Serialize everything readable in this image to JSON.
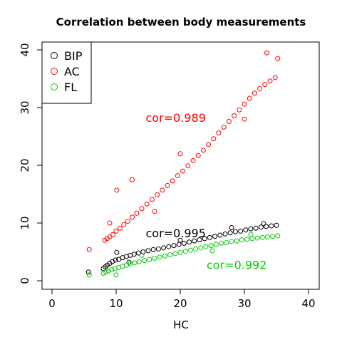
{
  "chart_data": {
    "type": "scatter",
    "title": "Correlation between body measurements",
    "xlabel": "HC",
    "ylabel": "",
    "xlim": [
      0,
      40
    ],
    "ylim": [
      0,
      40
    ],
    "x_ticks": [
      "0",
      "10",
      "20",
      "30",
      "40"
    ],
    "y_ticks": [
      "0",
      "10",
      "20",
      "30",
      "40"
    ],
    "grid": false,
    "legend_position": "top-left",
    "series": [
      {
        "name": "BIP",
        "color": "#000000",
        "points": [
          [
            5.7,
            1.5
          ],
          [
            8.0,
            2.1
          ],
          [
            8.3,
            2.4
          ],
          [
            8.6,
            2.7
          ],
          [
            9.0,
            3.0
          ],
          [
            9.4,
            3.3
          ],
          [
            9.9,
            3.6
          ],
          [
            10.4,
            3.7
          ],
          [
            11.0,
            4.0
          ],
          [
            11.6,
            4.2
          ],
          [
            12.2,
            4.4
          ],
          [
            12.8,
            4.6
          ],
          [
            13.5,
            4.8
          ],
          [
            14.2,
            5.0
          ],
          [
            15.0,
            5.2
          ],
          [
            15.8,
            5.4
          ],
          [
            16.6,
            5.5
          ],
          [
            17.4,
            5.7
          ],
          [
            18.2,
            5.9
          ],
          [
            19.0,
            6.1
          ],
          [
            19.8,
            6.3
          ],
          [
            20.6,
            6.5
          ],
          [
            21.4,
            6.7
          ],
          [
            22.2,
            6.9
          ],
          [
            23.0,
            7.1
          ],
          [
            23.8,
            7.3
          ],
          [
            24.6,
            7.5
          ],
          [
            25.4,
            7.7
          ],
          [
            26.2,
            7.9
          ],
          [
            27.0,
            8.1
          ],
          [
            27.8,
            8.3
          ],
          [
            28.6,
            8.5
          ],
          [
            29.4,
            8.6
          ],
          [
            30.2,
            8.8
          ],
          [
            31.0,
            9.0
          ],
          [
            31.8,
            9.1
          ],
          [
            32.6,
            9.3
          ],
          [
            33.4,
            9.4
          ],
          [
            34.2,
            9.5
          ],
          [
            35.0,
            9.6
          ],
          [
            10.1,
            4.9
          ],
          [
            12.0,
            3.2
          ],
          [
            20.0,
            7.0
          ],
          [
            28.0,
            9.2
          ],
          [
            33.0,
            9.9
          ]
        ]
      },
      {
        "name": "AC",
        "color": "#ff0000",
        "points": [
          [
            5.8,
            5.4
          ],
          [
            8.2,
            7.0
          ],
          [
            8.6,
            7.3
          ],
          [
            9.0,
            7.6
          ],
          [
            9.5,
            8.0
          ],
          [
            10.0,
            8.6
          ],
          [
            10.6,
            9.1
          ],
          [
            11.2,
            9.7
          ],
          [
            11.8,
            10.3
          ],
          [
            12.5,
            11.0
          ],
          [
            13.2,
            11.7
          ],
          [
            14.0,
            12.5
          ],
          [
            14.8,
            13.3
          ],
          [
            15.6,
            14.1
          ],
          [
            16.4,
            14.9
          ],
          [
            17.2,
            15.7
          ],
          [
            18.0,
            16.5
          ],
          [
            18.8,
            17.3
          ],
          [
            19.6,
            18.2
          ],
          [
            20.4,
            19.0
          ],
          [
            21.2,
            19.9
          ],
          [
            22.0,
            20.8
          ],
          [
            22.8,
            21.7
          ],
          [
            23.6,
            22.6
          ],
          [
            24.4,
            23.6
          ],
          [
            25.2,
            24.6
          ],
          [
            26.0,
            25.6
          ],
          [
            26.8,
            26.6
          ],
          [
            27.6,
            27.6
          ],
          [
            28.4,
            28.6
          ],
          [
            29.2,
            29.6
          ],
          [
            30.0,
            30.6
          ],
          [
            30.8,
            31.6
          ],
          [
            31.6,
            32.5
          ],
          [
            32.4,
            33.3
          ],
          [
            33.2,
            34.0
          ],
          [
            34.0,
            34.6
          ],
          [
            34.8,
            35.2
          ],
          [
            10.1,
            15.7
          ],
          [
            12.5,
            17.5
          ],
          [
            9.0,
            10.0
          ],
          [
            20.0,
            22.0
          ],
          [
            30.0,
            28.0
          ],
          [
            33.5,
            39.5
          ],
          [
            35.2,
            38.5
          ],
          [
            16.0,
            12.0
          ]
        ]
      },
      {
        "name": "FL",
        "color": "#00cc00",
        "points": [
          [
            5.8,
            1.0
          ],
          [
            8.0,
            1.3
          ],
          [
            8.4,
            1.5
          ],
          [
            8.8,
            1.7
          ],
          [
            9.3,
            1.9
          ],
          [
            9.8,
            2.1
          ],
          [
            10.4,
            2.3
          ],
          [
            11.0,
            2.5
          ],
          [
            11.6,
            2.7
          ],
          [
            12.2,
            2.9
          ],
          [
            12.9,
            3.1
          ],
          [
            13.6,
            3.3
          ],
          [
            14.4,
            3.5
          ],
          [
            15.2,
            3.7
          ],
          [
            16.0,
            3.9
          ],
          [
            16.8,
            4.1
          ],
          [
            17.6,
            4.3
          ],
          [
            18.4,
            4.5
          ],
          [
            19.2,
            4.7
          ],
          [
            20.0,
            4.9
          ],
          [
            20.8,
            5.1
          ],
          [
            21.6,
            5.3
          ],
          [
            22.4,
            5.5
          ],
          [
            23.2,
            5.7
          ],
          [
            24.0,
            5.9
          ],
          [
            24.8,
            6.1
          ],
          [
            25.6,
            6.3
          ],
          [
            26.4,
            6.5
          ],
          [
            27.2,
            6.6
          ],
          [
            28.0,
            6.8
          ],
          [
            28.8,
            6.9
          ],
          [
            29.6,
            7.1
          ],
          [
            30.4,
            7.2
          ],
          [
            31.2,
            7.3
          ],
          [
            32.0,
            7.4
          ],
          [
            32.8,
            7.5
          ],
          [
            33.6,
            7.6
          ],
          [
            34.4,
            7.7
          ],
          [
            35.2,
            7.8
          ],
          [
            10.0,
            1.0
          ],
          [
            14.0,
            4.4
          ],
          [
            25.0,
            5.2
          ],
          [
            31.0,
            8.0
          ]
        ]
      }
    ],
    "annotations": [
      {
        "text": "cor=0.989",
        "x": 19.3,
        "y": 28.3,
        "color": "#ff0000"
      },
      {
        "text": "cor=0.995",
        "x": 19.3,
        "y": 8.3,
        "color": "#000000"
      },
      {
        "text": "cor=0.992",
        "x": 28.8,
        "y": 2.8,
        "color": "#00cc00"
      }
    ]
  }
}
